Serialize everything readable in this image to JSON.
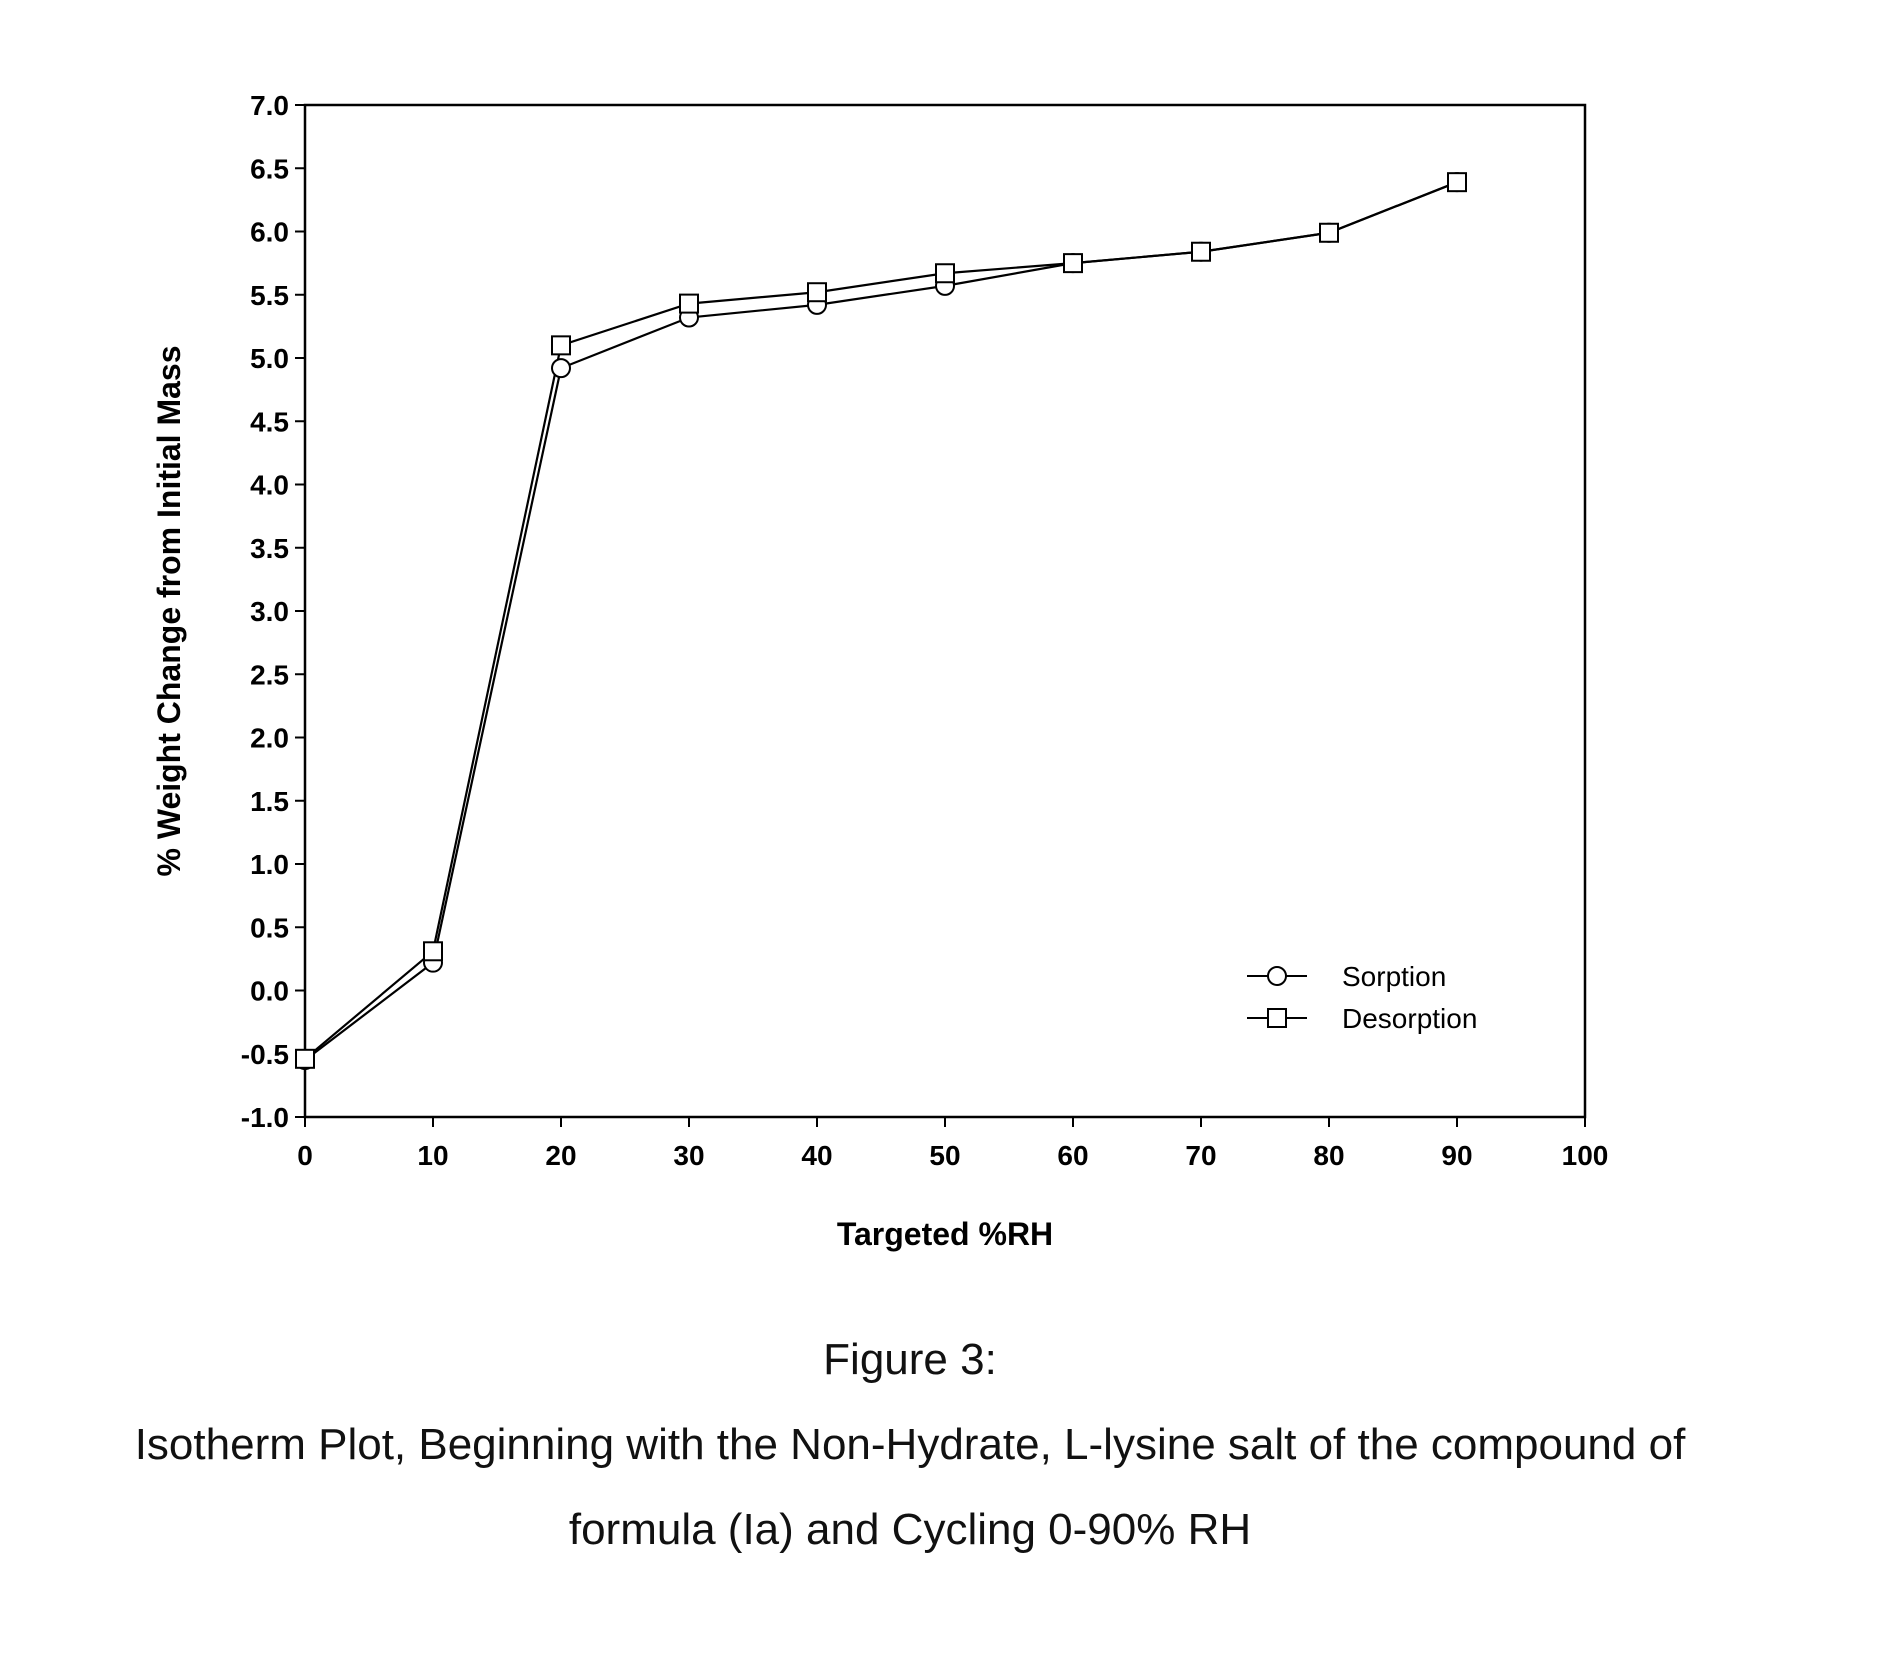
{
  "chart_data": {
    "type": "line",
    "xlabel": "Targeted %RH",
    "ylabel": "% Weight Change from Initial Mass",
    "xlim": [
      0,
      100
    ],
    "ylim": [
      -1.0,
      7.0
    ],
    "x_ticks": [
      "0",
      "10",
      "20",
      "30",
      "40",
      "50",
      "60",
      "70",
      "80",
      "90",
      "100"
    ],
    "y_ticks": [
      "-1.0",
      "-0.5",
      "0.0",
      "0.5",
      "1.0",
      "1.5",
      "2.0",
      "2.5",
      "3.0",
      "3.5",
      "4.0",
      "4.5",
      "5.0",
      "5.5",
      "6.0",
      "6.5",
      "7.0"
    ],
    "grid": false,
    "legend_position": "bottom-right",
    "series": [
      {
        "name": "Sorption",
        "marker": "circle",
        "x": [
          0,
          10,
          20,
          30,
          40,
          50,
          60,
          70,
          80,
          90
        ],
        "values": [
          -0.55,
          0.22,
          4.92,
          5.32,
          5.42,
          5.57,
          5.75,
          5.84,
          5.99,
          6.39
        ]
      },
      {
        "name": "Desorption",
        "marker": "square",
        "x": [
          0,
          10,
          20,
          30,
          40,
          50,
          60,
          70,
          80,
          90
        ],
        "values": [
          -0.54,
          0.31,
          5.1,
          5.43,
          5.52,
          5.67,
          5.75,
          5.84,
          5.99,
          6.39
        ]
      }
    ],
    "line_color": "#000000"
  },
  "caption": {
    "figure": "Figure 3:",
    "line1": "Isotherm Plot, Beginning with the Non-Hydrate, L-lysine salt of the compound of",
    "line2": "formula (Ia) and Cycling 0-90% RH"
  }
}
